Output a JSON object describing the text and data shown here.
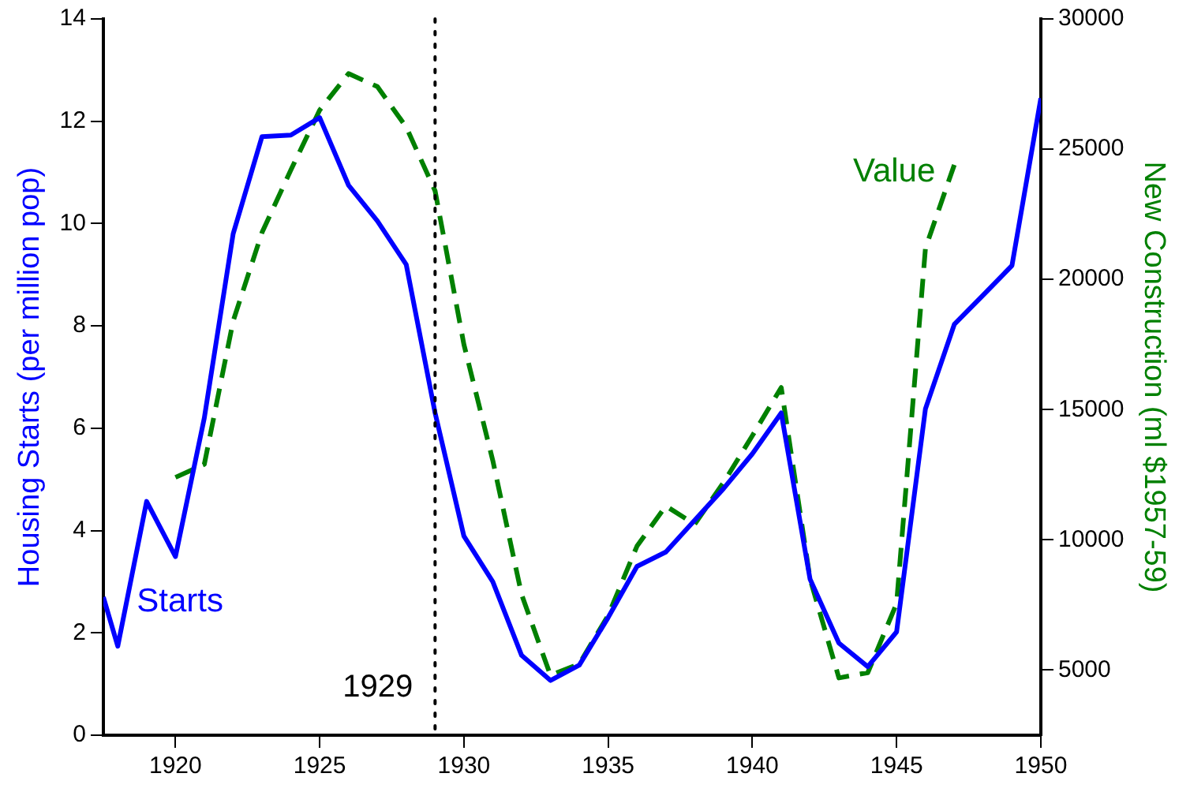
{
  "chart_data": {
    "type": "line",
    "ylabel": "Housing Starts (per million pop)",
    "y2label": "New Construction (ml $1957-59)",
    "xlim": [
      1917.5,
      1950
    ],
    "xticks": [
      1920,
      1925,
      1930,
      1935,
      1940,
      1945,
      1950
    ],
    "ylim": [
      0,
      14
    ],
    "yticks": [
      0,
      2,
      4,
      6,
      8,
      10,
      12,
      14
    ],
    "y2lim": [
      2500,
      30000
    ],
    "y2ticks": [
      5000,
      10000,
      15000,
      20000,
      25000,
      30000
    ],
    "grid": false,
    "legend": false,
    "series": [
      {
        "name": "Starts",
        "color": "#0000ff",
        "line_style": "solid",
        "x": [
          1917.5,
          1918,
          1919,
          1920,
          1921,
          1922,
          1923,
          1924,
          1925,
          1926,
          1927,
          1928,
          1929,
          1930,
          1931,
          1932,
          1933,
          1934,
          1935,
          1936,
          1937,
          1938,
          1939,
          1940,
          1941,
          1942,
          1943,
          1944,
          1945,
          1946,
          1947,
          1948,
          1949,
          1950
        ],
        "values": [
          2.7,
          1.74,
          4.57,
          3.49,
          6.2,
          9.8,
          11.7,
          11.73,
          12.07,
          10.75,
          10.05,
          9.2,
          6.3,
          3.89,
          3.0,
          1.56,
          1.07,
          1.37,
          2.3,
          3.3,
          3.58,
          4.2,
          4.82,
          5.5,
          6.3,
          3.05,
          1.8,
          1.34,
          2.02,
          6.38,
          8.03,
          8.6,
          9.18,
          12.45
        ]
      },
      {
        "name": "Value",
        "color": "#008000",
        "line_style": "dashed",
        "axis": "y2",
        "x": [
          1920,
          1921,
          1922,
          1923,
          1924,
          1925,
          1926,
          1927,
          1928,
          1929,
          1930,
          1931,
          1932,
          1933,
          1934,
          1935,
          1936,
          1937,
          1938,
          1939,
          1940,
          1941,
          1942,
          1943,
          1944,
          1945,
          1946,
          1947
        ],
        "values": [
          12400,
          12900,
          18400,
          21800,
          24200,
          26500,
          27900,
          27400,
          25850,
          23400,
          17500,
          13050,
          7900,
          4800,
          5240,
          7100,
          9760,
          11300,
          10600,
          12200,
          14000,
          15850,
          8500,
          4700,
          4900,
          7560,
          21200,
          24400
        ]
      }
    ],
    "ref_lines": [
      {
        "axis": "x",
        "value": 1929,
        "label": "1929",
        "color": "#000000",
        "line_style": "dotted"
      }
    ]
  }
}
